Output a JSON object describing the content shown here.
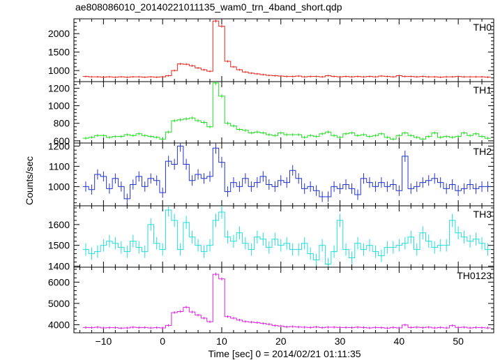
{
  "page_title": "ae808086010_20140221011135_wam0_trn_4band_short.qdp",
  "ylabel": "Counts/sec",
  "xlabel": "Time [sec] 0 = 2014/02/21 01:11:35",
  "chart_data": {
    "type": "line",
    "title": "ae808086010_20140221011135_wam0_trn_4band_short.qdp",
    "xlabel": "Time [sec] 0 = 2014/02/21 01:11:35",
    "ylabel": "Counts/sec",
    "xlim": [
      -15,
      56
    ],
    "xticks": [
      -10,
      0,
      10,
      20,
      30,
      40,
      50
    ],
    "x_start": -13.5,
    "bin_width": 1,
    "step_style": "histogram with error bars",
    "grid": false,
    "panels": [
      {
        "name": "TH0",
        "color": "#e8231b",
        "ylim": [
          700,
          2400
        ],
        "yticks": [
          1000,
          1500,
          2000
        ],
        "values": [
          840,
          830,
          830,
          820,
          830,
          820,
          830,
          820,
          830,
          830,
          820,
          830,
          820,
          830,
          860,
          1000,
          1180,
          1170,
          1130,
          1070,
          1020,
          980,
          2340,
          2200,
          1250,
          1100,
          1020,
          960,
          930,
          910,
          890,
          870,
          860,
          850,
          840,
          840,
          850,
          830,
          840,
          840,
          830,
          860,
          840,
          830,
          840,
          830,
          840,
          830,
          840,
          830,
          850,
          840,
          830,
          860,
          840,
          840,
          830,
          840,
          830,
          830,
          820,
          830,
          830,
          840,
          830,
          830,
          830,
          830,
          820
        ],
        "errors": [
          22,
          22,
          22,
          22,
          22,
          22,
          22,
          22,
          22,
          22,
          22,
          22,
          22,
          22,
          24,
          26,
          28,
          28,
          27,
          26,
          26,
          26,
          40,
          38,
          28,
          27,
          26,
          25,
          25,
          25,
          24,
          24,
          24,
          24,
          24,
          24,
          24,
          24,
          24,
          24,
          24,
          24,
          24,
          24,
          24,
          24,
          24,
          24,
          24,
          24,
          24,
          24,
          24,
          24,
          24,
          24,
          24,
          24,
          24,
          24,
          24,
          24,
          24,
          24,
          24,
          24,
          24,
          24,
          24
        ]
      },
      {
        "name": "TH1",
        "color": "#22dd22",
        "ylim": [
          575,
          1275
        ],
        "yticks": [
          600,
          800,
          1000,
          1200
        ],
        "values": [
          630,
          640,
          660,
          660,
          640,
          650,
          650,
          670,
          660,
          680,
          660,
          650,
          640,
          620,
          700,
          830,
          840,
          850,
          860,
          830,
          810,
          760,
          1260,
          1110,
          800,
          770,
          730,
          720,
          690,
          700,
          690,
          670,
          660,
          690,
          670,
          670,
          670,
          640,
          660,
          650,
          680,
          700,
          660,
          640,
          680,
          690,
          660,
          670,
          650,
          660,
          680,
          640,
          620,
          660,
          690,
          660,
          640,
          620,
          650,
          690,
          640,
          650,
          640,
          650,
          690,
          660,
          680,
          650,
          630
        ],
        "errors": [
          15,
          15,
          15,
          15,
          15,
          15,
          15,
          15,
          15,
          15,
          15,
          15,
          15,
          15,
          16,
          18,
          18,
          18,
          18,
          18,
          18,
          17,
          24,
          22,
          18,
          17,
          16,
          16,
          16,
          16,
          16,
          16,
          16,
          16,
          16,
          16,
          16,
          16,
          16,
          16,
          16,
          16,
          16,
          16,
          16,
          16,
          16,
          16,
          16,
          16,
          16,
          16,
          16,
          16,
          16,
          16,
          16,
          16,
          16,
          16,
          16,
          16,
          16,
          16,
          16,
          16,
          16,
          16,
          16
        ]
      },
      {
        "name": "TH2",
        "color": "#2233cc",
        "ylim": [
          905,
          1215
        ],
        "yticks": [
          1000,
          1100,
          1200
        ],
        "values": [
          1000,
          985,
          1060,
          1050,
          990,
          1040,
          1000,
          940,
          1010,
          1050,
          1000,
          1040,
          1030,
          970,
          1125,
          1110,
          1200,
          1110,
          1030,
          1060,
          1040,
          1050,
          1190,
          1120,
          975,
          1020,
          1000,
          1040,
          1000,
          1020,
          1050,
          1010,
          1000,
          1030,
          1020,
          1080,
          1040,
          990,
          1000,
          980,
          950,
          950,
          1000,
          990,
          1010,
          990,
          960,
          1040,
          1020,
          1000,
          1020,
          1000,
          1010,
          980,
          1150,
          990,
          1000,
          1020,
          1030,
          1040,
          1020,
          990,
          1010,
          980,
          990,
          1010,
          990,
          1000,
          1000
        ],
        "errors": [
          25,
          25,
          25,
          25,
          25,
          25,
          25,
          25,
          25,
          25,
          25,
          25,
          25,
          25,
          27,
          27,
          28,
          27,
          26,
          26,
          26,
          26,
          28,
          27,
          26,
          26,
          26,
          26,
          26,
          26,
          26,
          26,
          26,
          26,
          26,
          26,
          26,
          26,
          26,
          26,
          26,
          26,
          26,
          26,
          26,
          26,
          26,
          26,
          26,
          26,
          26,
          26,
          26,
          26,
          28,
          26,
          26,
          26,
          26,
          26,
          26,
          26,
          26,
          26,
          26,
          26,
          26,
          26,
          26
        ]
      },
      {
        "name": "TH3",
        "color": "#22dddd",
        "ylim": [
          1395,
          1690
        ],
        "yticks": [
          1400,
          1500,
          1600
        ],
        "values": [
          1480,
          1460,
          1470,
          1500,
          1520,
          1510,
          1490,
          1470,
          1520,
          1490,
          1470,
          1600,
          1510,
          1480,
          1670,
          1620,
          1480,
          1610,
          1540,
          1500,
          1470,
          1500,
          1620,
          1660,
          1540,
          1520,
          1560,
          1510,
          1480,
          1540,
          1530,
          1490,
          1530,
          1500,
          1510,
          1480,
          1480,
          1510,
          1460,
          1430,
          1500,
          1410,
          1470,
          1620,
          1480,
          1440,
          1510,
          1480,
          1500,
          1470,
          1450,
          1490,
          1490,
          1500,
          1510,
          1540,
          1480,
          1560,
          1520,
          1490,
          1500,
          1500,
          1620,
          1560,
          1540,
          1520,
          1530,
          1510,
          1480
        ],
        "errors": [
          30,
          30,
          30,
          30,
          30,
          30,
          30,
          30,
          30,
          30,
          30,
          30,
          30,
          30,
          32,
          32,
          30,
          32,
          31,
          30,
          30,
          30,
          32,
          32,
          31,
          31,
          31,
          30,
          30,
          31,
          31,
          30,
          31,
          30,
          30,
          30,
          30,
          30,
          30,
          30,
          30,
          30,
          30,
          32,
          30,
          30,
          30,
          30,
          30,
          30,
          30,
          30,
          30,
          30,
          30,
          31,
          30,
          31,
          31,
          30,
          30,
          30,
          32,
          31,
          31,
          31,
          31,
          30,
          30
        ]
      },
      {
        "name": "TH0123",
        "color": "#dd22dd",
        "ylim": [
          3620,
          6700
        ],
        "yticks": [
          4000,
          5000,
          6000
        ],
        "values": [
          3870,
          3860,
          3880,
          3850,
          3860,
          3860,
          3840,
          3850,
          3880,
          3860,
          3870,
          3850,
          3860,
          3850,
          3970,
          4570,
          4620,
          4820,
          4600,
          4450,
          4310,
          4140,
          6370,
          6150,
          4380,
          4310,
          4220,
          4150,
          4120,
          4100,
          4060,
          4020,
          3960,
          3940,
          3900,
          3910,
          3890,
          3880,
          3870,
          3890,
          3860,
          3880,
          3880,
          3870,
          3870,
          3860,
          3880,
          3870,
          3850,
          3870,
          3860,
          3840,
          3870,
          3850,
          3990,
          3870,
          3880,
          3860,
          3880,
          3850,
          3870,
          3850,
          3960,
          3870,
          3880,
          3850,
          3870,
          3860,
          3850
        ],
        "errors": [
          55,
          55,
          55,
          55,
          55,
          55,
          55,
          55,
          55,
          55,
          55,
          55,
          55,
          55,
          56,
          60,
          60,
          62,
          60,
          58,
          58,
          57,
          72,
          70,
          58,
          58,
          58,
          57,
          57,
          57,
          57,
          57,
          56,
          56,
          56,
          56,
          56,
          56,
          56,
          56,
          56,
          56,
          56,
          56,
          56,
          56,
          56,
          56,
          56,
          56,
          56,
          56,
          56,
          56,
          56,
          56,
          56,
          56,
          56,
          56,
          56,
          56,
          56,
          56,
          56,
          56,
          56,
          56,
          56
        ]
      }
    ]
  }
}
